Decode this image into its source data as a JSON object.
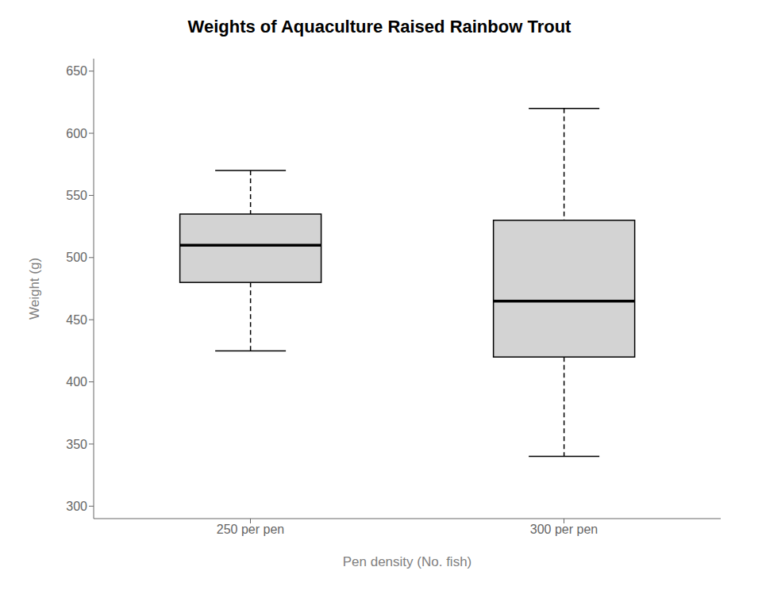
{
  "chart_data": {
    "type": "box",
    "title": "Weights of Aquaculture Raised Rainbow Trout",
    "x_label": "Pen density (No. fish)",
    "y_label": "Weight (g)",
    "categories": [
      "250 per pen",
      "300 per pen"
    ],
    "values": [
      {
        "whislo": 425,
        "q1": 480,
        "med": 510,
        "q3": 535,
        "whishi": 570
      },
      {
        "whislo": 340,
        "q1": 420,
        "med": 465,
        "q3": 530,
        "whishi": 620
      }
    ],
    "ylim": [
      290,
      660
    ],
    "yticks": [
      300,
      350,
      400,
      450,
      500,
      550,
      600,
      650
    ],
    "color": "#d3d3d3",
    "line_style": "dashed",
    "grid": false
  }
}
